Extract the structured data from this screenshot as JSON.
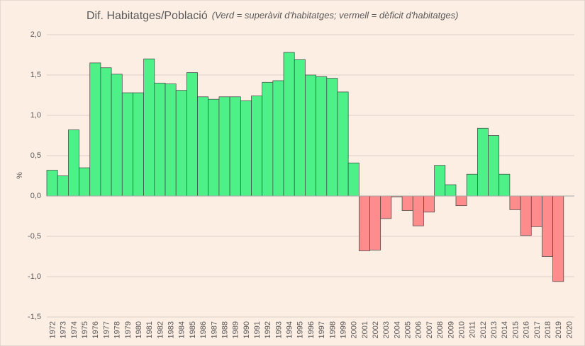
{
  "chart_data": {
    "type": "bar",
    "title": "Dif. Habitatges/Població",
    "subtitle": "(Verd = superàvit d'habitatges; vermell = dèficit d'habitatges)",
    "y_label": "%",
    "categories": [
      "1972",
      "1973",
      "1974",
      "1975",
      "1976",
      "1977",
      "1978",
      "1979",
      "1980",
      "1981",
      "1982",
      "1983",
      "1984",
      "1985",
      "1986",
      "1987",
      "1988",
      "1989",
      "1990",
      "1991",
      "1992",
      "1993",
      "1994",
      "1995",
      "1996",
      "1997",
      "1998",
      "1999",
      "2000",
      "2001",
      "2002",
      "2003",
      "2004",
      "2005",
      "2006",
      "2007",
      "2008",
      "2009",
      "2010",
      "2011",
      "2012",
      "2013",
      "2014",
      "2015",
      "2016",
      "2017",
      "2018",
      "2019",
      "2020"
    ],
    "values": [
      0.32,
      0.25,
      0.82,
      0.35,
      1.65,
      1.59,
      1.51,
      1.28,
      1.28,
      1.7,
      1.4,
      1.39,
      1.31,
      1.53,
      1.23,
      1.2,
      1.23,
      1.23,
      1.18,
      1.24,
      1.41,
      1.43,
      1.78,
      1.69,
      1.5,
      1.48,
      1.46,
      1.29,
      0.41,
      -0.68,
      -0.67,
      -0.28,
      -0.01,
      -0.18,
      -0.37,
      -0.2,
      0.38,
      0.14,
      -0.12,
      0.27,
      0.84,
      0.75,
      0.27,
      -0.17,
      -0.49,
      -0.38,
      -0.75,
      -1.06,
      null
    ],
    "positive_color": "#4ef088",
    "negative_color": "#ff8c8c",
    "ylim": [
      -1.5,
      2.0
    ],
    "yticks": [
      {
        "value": -1.5,
        "label": "-1,5"
      },
      {
        "value": -1.0,
        "label": "-1,0"
      },
      {
        "value": -0.5,
        "label": "-0,5"
      },
      {
        "value": 0,
        "label": "0,0"
      },
      {
        "value": 0.5,
        "label": "0,5"
      },
      {
        "value": 1.0,
        "label": "1,0"
      },
      {
        "value": 1.5,
        "label": "1,5"
      },
      {
        "value": 2.0,
        "label": "2,0"
      }
    ],
    "grid": true
  }
}
